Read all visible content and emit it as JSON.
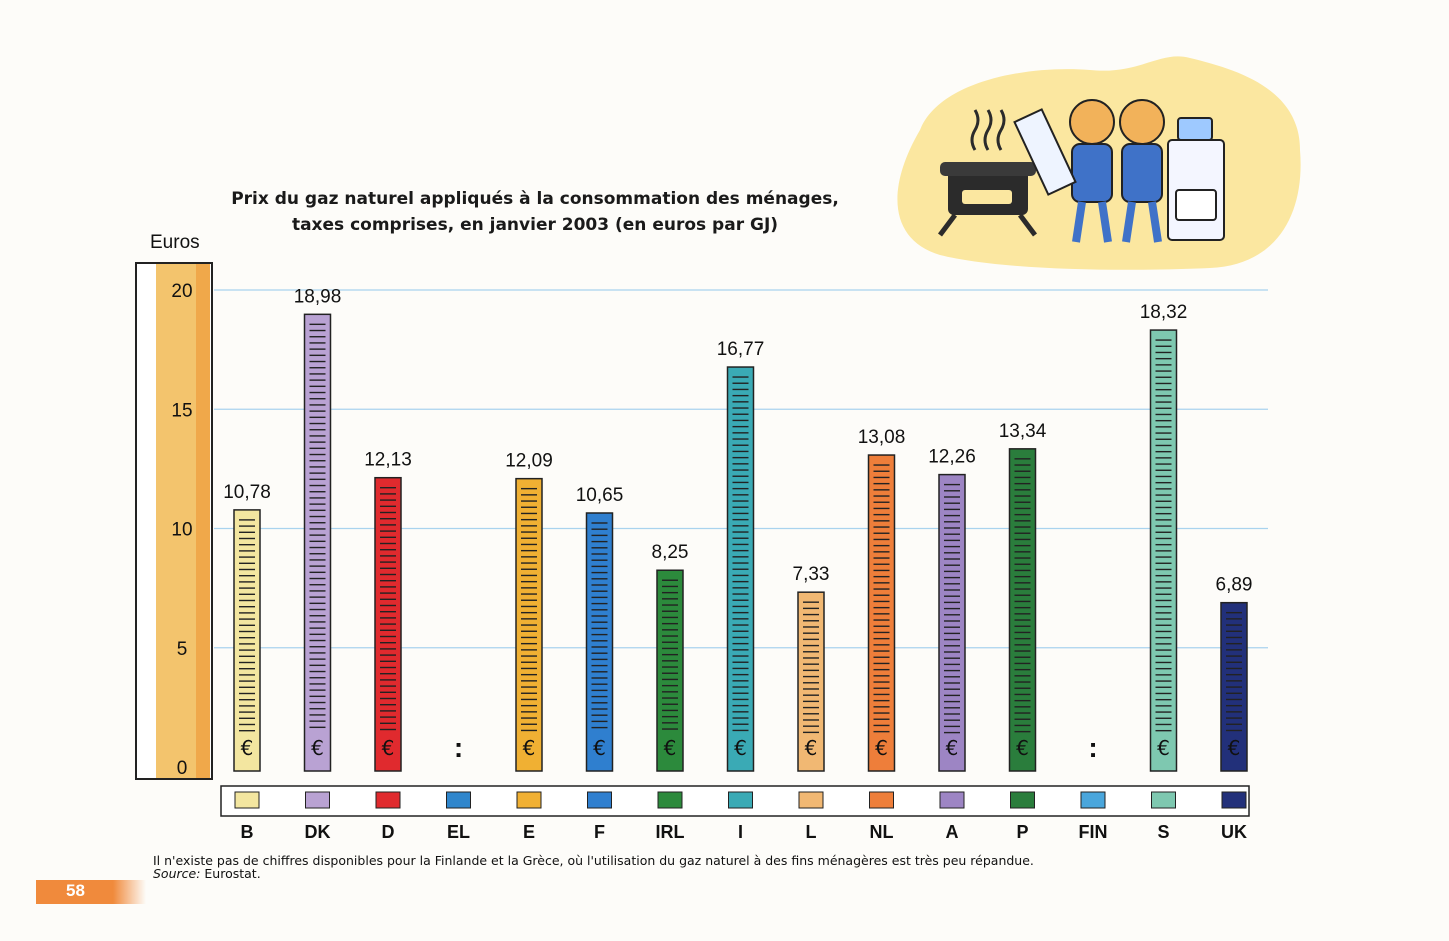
{
  "page": {
    "number": "58",
    "footnote": "Il n'existe pas de chiffres disponibles pour la Finlande et la Grèce, où l'utilisation du gaz naturel à des fins ménagères est très peu répandue.",
    "source_label": "Source:",
    "source_value": "Eurostat."
  },
  "chart_data": {
    "type": "bar",
    "title_line1": "Prix du gaz naturel appliqués à la consommation des ménages,",
    "title_line2": "taxes comprises, en janvier 2003 (en euros par GJ)",
    "ylabel": "Euros",
    "ylim": [
      0,
      20
    ],
    "yticks": [
      "0",
      "5",
      "10",
      "15",
      "20"
    ],
    "categories": [
      "B",
      "DK",
      "D",
      "EL",
      "E",
      "F",
      "IRL",
      "I",
      "L",
      "NL",
      "A",
      "P",
      "FIN",
      "S",
      "UK"
    ],
    "values": [
      10.78,
      18.98,
      12.13,
      null,
      12.09,
      10.65,
      8.25,
      16.77,
      7.33,
      13.08,
      12.26,
      13.34,
      null,
      18.32,
      6.89
    ],
    "value_labels": [
      "10,78",
      "18,98",
      "12,13",
      ":",
      "12,09",
      "10,65",
      "8,25",
      "16,77",
      "7,33",
      "13,08",
      "12,26",
      "13,34",
      ":",
      "18,32",
      "6,89"
    ],
    "colors": [
      "#f3e6a0",
      "#b9a2d3",
      "#e02a2e",
      "#2f86cc",
      "#f0b033",
      "#2f7fcf",
      "#2c8a3c",
      "#3aaab5",
      "#f1b873",
      "#ee7e3a",
      "#9d85c4",
      "#2a7d3c",
      "#4aa6dc",
      "#7ec8b0",
      "#22307a"
    ],
    "bar_symbol": "€",
    "grid": true
  }
}
